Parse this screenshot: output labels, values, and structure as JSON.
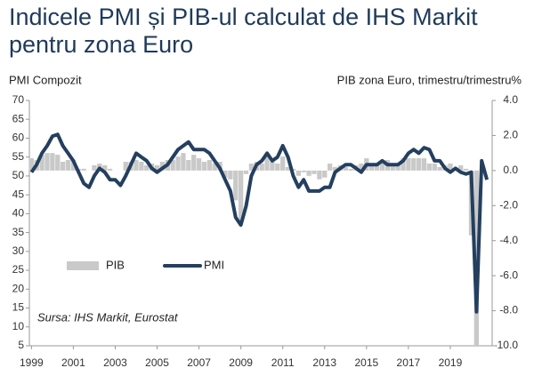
{
  "chart_data": {
    "type": "combo",
    "title": "Indicele PMI și PIB-ul calculat de IHS Markit pentru zona Euro",
    "y_label": "PMI Compozit",
    "y2_label": "PIB zona Euro, trimestru/trimestru%",
    "note": "Sursa: IHS Markit, Eurostat",
    "x": [
      1999,
      1999.25,
      1999.5,
      1999.75,
      2000,
      2000.25,
      2000.5,
      2000.75,
      2001,
      2001.25,
      2001.5,
      2001.75,
      2002,
      2002.25,
      2002.5,
      2002.75,
      2003,
      2003.25,
      2003.5,
      2003.75,
      2004,
      2004.25,
      2004.5,
      2004.75,
      2005,
      2005.25,
      2005.5,
      2005.75,
      2006,
      2006.25,
      2006.5,
      2006.75,
      2007,
      2007.25,
      2007.5,
      2007.75,
      2008,
      2008.25,
      2008.5,
      2008.75,
      2009,
      2009.25,
      2009.5,
      2009.75,
      2010,
      2010.25,
      2010.5,
      2010.75,
      2011,
      2011.25,
      2011.5,
      2011.75,
      2012,
      2012.25,
      2012.5,
      2012.75,
      2013,
      2013.25,
      2013.5,
      2013.75,
      2014,
      2014.25,
      2014.5,
      2014.75,
      2015,
      2015.25,
      2015.5,
      2015.75,
      2016,
      2016.25,
      2016.5,
      2016.75,
      2017,
      2017.25,
      2017.5,
      2017.75,
      2018,
      2018.25,
      2018.5,
      2018.75,
      2019,
      2019.25,
      2019.5,
      2019.75,
      2020,
      2020.25,
      2020.5,
      2020.75
    ],
    "series": [
      {
        "name": "PIB",
        "type": "bar",
        "axis": "y2",
        "color": "#c9c9c9",
        "values": [
          0.7,
          0.6,
          0.9,
          1.0,
          1.0,
          0.9,
          0.5,
          0.6,
          0.6,
          0.1,
          0.1,
          0.0,
          0.3,
          0.4,
          0.3,
          0.1,
          0.0,
          0.0,
          0.5,
          0.5,
          0.6,
          0.5,
          0.3,
          0.4,
          0.3,
          0.5,
          0.6,
          0.6,
          0.8,
          1.0,
          0.6,
          0.9,
          0.7,
          0.5,
          0.6,
          0.4,
          0.5,
          -0.4,
          -0.5,
          -1.7,
          -3.0,
          -0.2,
          0.4,
          0.5,
          0.4,
          1.0,
          0.5,
          0.4,
          0.8,
          0.2,
          0.1,
          -0.3,
          -0.1,
          -0.3,
          -0.2,
          -0.5,
          -0.4,
          0.4,
          0.2,
          0.3,
          0.2,
          0.1,
          0.3,
          0.4,
          0.7,
          0.4,
          0.3,
          0.5,
          0.6,
          0.3,
          0.4,
          0.7,
          0.7,
          0.7,
          0.7,
          0.7,
          0.4,
          0.4,
          0.2,
          0.3,
          0.4,
          0.1,
          0.3,
          0.1,
          -3.7,
          -10.0,
          null,
          null
        ]
      },
      {
        "name": "PMI",
        "type": "line",
        "color": "#243f5f",
        "values": [
          51,
          53,
          56,
          58,
          60.5,
          61,
          58,
          56,
          54,
          51,
          48,
          47,
          50,
          52,
          51,
          49,
          49,
          47.5,
          50,
          53,
          56,
          55,
          54,
          52,
          51,
          52,
          53,
          55,
          57,
          58,
          59,
          57,
          57,
          57,
          56,
          54,
          52,
          49,
          46,
          39,
          37,
          42,
          50,
          53,
          54,
          56,
          54,
          55,
          58,
          55,
          50,
          47,
          49,
          46,
          46,
          46,
          47,
          47,
          51,
          52,
          53,
          53,
          52,
          51,
          53,
          53,
          53,
          54,
          53,
          53,
          53,
          54,
          56,
          57,
          56,
          57.5,
          57,
          54,
          54,
          52,
          51,
          52,
          51,
          50.5,
          51,
          14,
          54,
          49
        ]
      }
    ],
    "xlim": [
      1998.9,
      2021.0
    ],
    "xticks": [
      1999,
      2001,
      2003,
      2005,
      2007,
      2009,
      2011,
      2013,
      2015,
      2017,
      2019
    ],
    "ylim": [
      5,
      70
    ],
    "yticks": [
      5,
      10,
      15,
      20,
      25,
      30,
      35,
      40,
      45,
      50,
      55,
      60,
      65,
      70
    ],
    "y2lim": [
      -10,
      4
    ],
    "y2ticks": [
      {
        "value": 4,
        "label": "4.0"
      },
      {
        "value": 2,
        "label": "2.0"
      },
      {
        "value": 0,
        "label": "0.0"
      },
      {
        "value": -2,
        "label": "-2.0"
      },
      {
        "value": -4,
        "label": "-4.0"
      },
      {
        "value": -6,
        "label": "-6.0"
      },
      {
        "value": -8,
        "label": "-8.0"
      },
      {
        "value": -10,
        "label": "-10.0"
      }
    ],
    "legend": "lower-left"
  }
}
